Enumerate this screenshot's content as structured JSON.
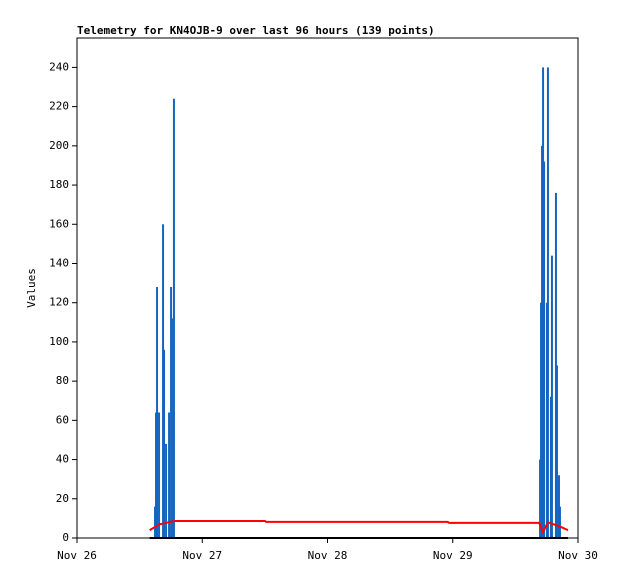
{
  "chart_data": {
    "type": "bar-line",
    "title": "Telemetry for KN4OJB-9 over last 96 hours (139 points)",
    "y_label": "Values",
    "xlim": [
      0,
      4
    ],
    "xticks": [
      {
        "value": 0,
        "label": "Nov 26"
      },
      {
        "value": 1,
        "label": "Nov 27"
      },
      {
        "value": 2,
        "label": "Nov 28"
      },
      {
        "value": 3,
        "label": "Nov 29"
      },
      {
        "value": 4,
        "label": "Nov 30"
      }
    ],
    "ylim": [
      0,
      255
    ],
    "yticks": [
      0,
      20,
      40,
      60,
      80,
      100,
      120,
      140,
      160,
      180,
      200,
      220,
      240
    ],
    "series": [
      {
        "kind": "bar",
        "color": "#1565c0",
        "x": [
          0.623,
          0.631,
          0.639,
          0.655,
          0.687,
          0.695,
          0.711,
          0.735,
          0.751,
          0.758,
          0.774,
          3.697,
          3.705,
          3.713,
          3.721,
          3.729,
          3.752,
          3.76,
          3.784,
          3.792,
          3.824,
          3.832,
          3.848,
          3.856
        ],
        "values": [
          16,
          64,
          128,
          64,
          160,
          96,
          48,
          64,
          128,
          112,
          224,
          40,
          120,
          200,
          240,
          192,
          120,
          240,
          72,
          144,
          176,
          88,
          32,
          16
        ]
      },
      {
        "kind": "line",
        "color": "#ff0000",
        "x": [
          0.58,
          0.66,
          0.78,
          1.5,
          1.51,
          2.96,
          2.97,
          3.69,
          3.72,
          3.76,
          3.85,
          3.92
        ],
        "values": [
          4,
          7,
          8.7,
          8.7,
          8.2,
          8.2,
          7.7,
          7.7,
          3,
          8,
          6,
          4
        ]
      },
      {
        "kind": "line",
        "color": "#000000",
        "x": [
          0.58,
          3.92
        ],
        "values": [
          0,
          0
        ]
      }
    ]
  }
}
